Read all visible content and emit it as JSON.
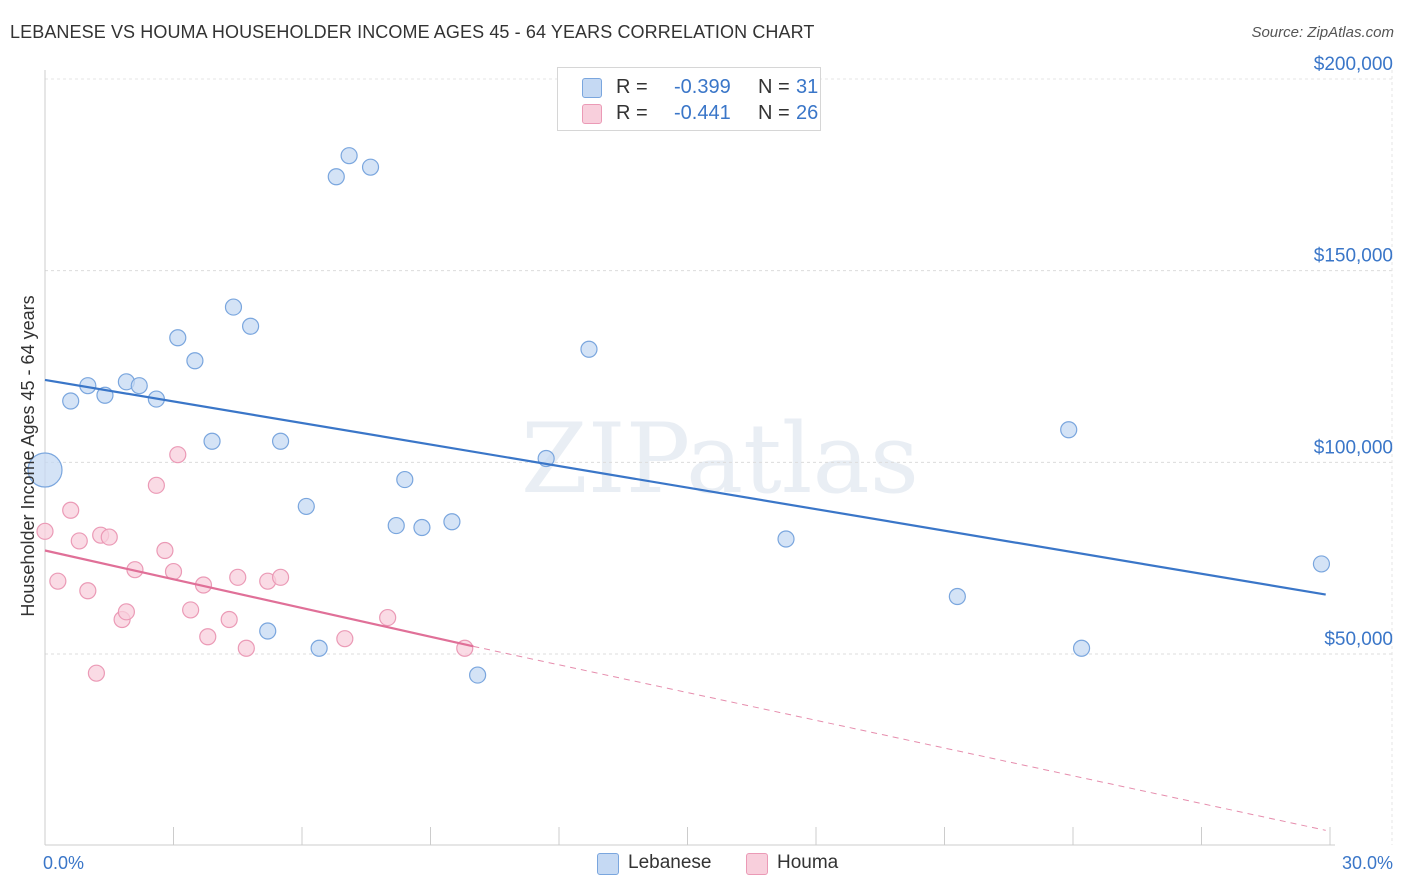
{
  "chart_data": {
    "type": "scatter",
    "title": "LEBANESE VS HOUMA HOUSEHOLDER INCOME AGES 45 - 64 YEARS CORRELATION CHART",
    "source": "Source: ZipAtlas.com",
    "ylabel": "Householder Income Ages 45 - 64 years",
    "xlabel": "",
    "xlim": [
      0,
      30
    ],
    "ylim": [
      0,
      210000
    ],
    "x_tick_labels": [
      "0.0%",
      "30.0%"
    ],
    "y_ticks": [
      50000,
      100000,
      150000,
      200000
    ],
    "y_tick_labels": [
      "$50,000",
      "$100,000",
      "$150,000",
      "$200,000"
    ],
    "grid": true,
    "watermark": "ZIPatlas",
    "legend": {
      "position": "top-center",
      "rows": [
        {
          "r_label": "R =",
          "r_value": "-0.399",
          "n_label": "N =",
          "n_value": "31"
        },
        {
          "r_label": "R =",
          "r_value": "-0.441",
          "n_label": "N =",
          "n_value": "26"
        }
      ]
    },
    "series": [
      {
        "name": "Lebanese",
        "color": "#3a76c8",
        "fill": "#c5d9f3",
        "stroke": "#7aa6de",
        "regression": {
          "x0": 0.0,
          "y0": 121500,
          "x1": 29.9,
          "y1": 65500
        },
        "points": [
          {
            "x": 0.0,
            "y": 98000,
            "big": true
          },
          {
            "x": 0.6,
            "y": 116000
          },
          {
            "x": 1.0,
            "y": 120000
          },
          {
            "x": 1.4,
            "y": 117500
          },
          {
            "x": 1.9,
            "y": 121000
          },
          {
            "x": 2.2,
            "y": 120000
          },
          {
            "x": 2.6,
            "y": 116500
          },
          {
            "x": 3.1,
            "y": 132500
          },
          {
            "x": 3.5,
            "y": 126500
          },
          {
            "x": 3.9,
            "y": 105500
          },
          {
            "x": 4.4,
            "y": 140500
          },
          {
            "x": 4.8,
            "y": 135500
          },
          {
            "x": 5.2,
            "y": 56000
          },
          {
            "x": 5.5,
            "y": 105500
          },
          {
            "x": 6.1,
            "y": 88500
          },
          {
            "x": 6.4,
            "y": 51500
          },
          {
            "x": 6.8,
            "y": 174500
          },
          {
            "x": 7.1,
            "y": 180000
          },
          {
            "x": 7.6,
            "y": 177000
          },
          {
            "x": 8.2,
            "y": 83500
          },
          {
            "x": 8.4,
            "y": 95500
          },
          {
            "x": 8.8,
            "y": 83000
          },
          {
            "x": 9.5,
            "y": 84500
          },
          {
            "x": 10.1,
            "y": 44500
          },
          {
            "x": 11.7,
            "y": 101000
          },
          {
            "x": 12.7,
            "y": 129500
          },
          {
            "x": 17.3,
            "y": 80000
          },
          {
            "x": 21.3,
            "y": 65000
          },
          {
            "x": 23.9,
            "y": 108500
          },
          {
            "x": 24.2,
            "y": 51500
          },
          {
            "x": 29.8,
            "y": 73500
          }
        ]
      },
      {
        "name": "Houma",
        "color": "#e07098",
        "fill": "#f8cfdc",
        "stroke": "#eb9ab6",
        "regression": {
          "x0": 0.0,
          "y0": 77000,
          "x1": 10.0,
          "y1": 52000
        },
        "regression_ext": {
          "x0": 10.0,
          "y0": 52000,
          "x1": 29.9,
          "y1": 4000
        },
        "points": [
          {
            "x": 0.0,
            "y": 82000
          },
          {
            "x": 0.3,
            "y": 69000
          },
          {
            "x": 0.6,
            "y": 87500
          },
          {
            "x": 0.8,
            "y": 79500
          },
          {
            "x": 1.0,
            "y": 66500
          },
          {
            "x": 1.2,
            "y": 45000
          },
          {
            "x": 1.3,
            "y": 81000
          },
          {
            "x": 1.5,
            "y": 80500
          },
          {
            "x": 1.8,
            "y": 59000
          },
          {
            "x": 1.9,
            "y": 61000
          },
          {
            "x": 2.1,
            "y": 72000
          },
          {
            "x": 2.6,
            "y": 94000
          },
          {
            "x": 2.8,
            "y": 77000
          },
          {
            "x": 3.0,
            "y": 71500
          },
          {
            "x": 3.1,
            "y": 102000
          },
          {
            "x": 3.4,
            "y": 61500
          },
          {
            "x": 3.7,
            "y": 68000
          },
          {
            "x": 3.8,
            "y": 54500
          },
          {
            "x": 4.3,
            "y": 59000
          },
          {
            "x": 4.5,
            "y": 70000
          },
          {
            "x": 4.7,
            "y": 51500
          },
          {
            "x": 5.2,
            "y": 69000
          },
          {
            "x": 5.5,
            "y": 70000
          },
          {
            "x": 7.0,
            "y": 54000
          },
          {
            "x": 8.0,
            "y": 59500
          },
          {
            "x": 9.8,
            "y": 51500
          }
        ]
      }
    ]
  }
}
